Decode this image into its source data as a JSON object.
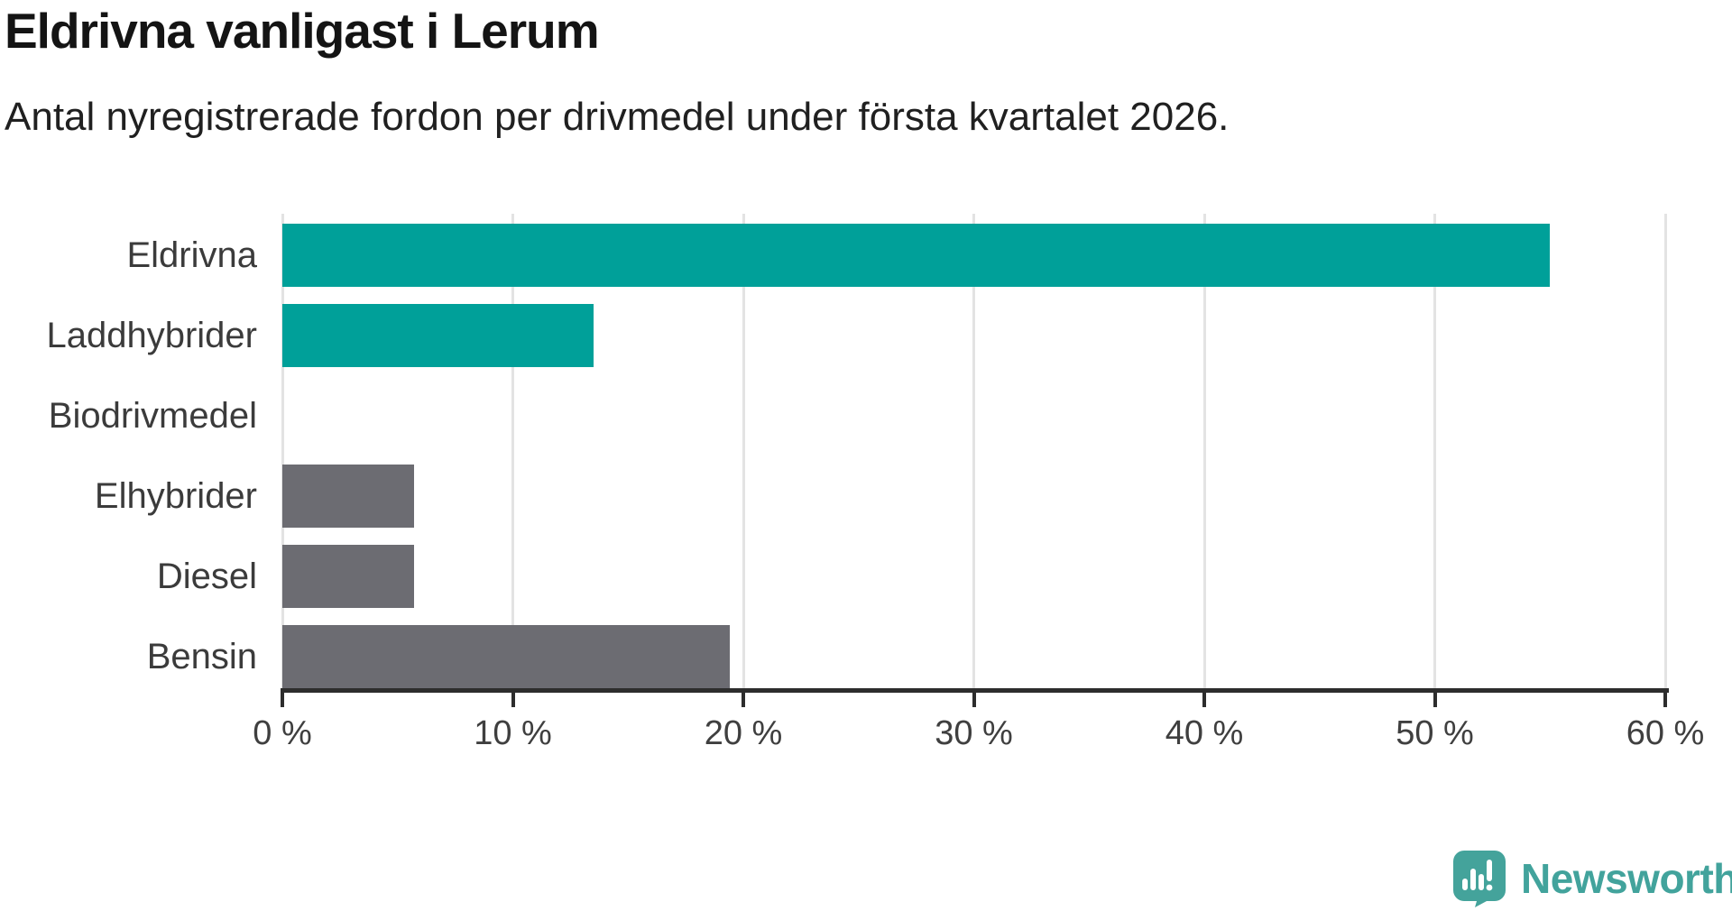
{
  "header": {
    "title": "Eldrivna vanligast i Lerum",
    "subtitle": "Antal nyregistrerade fordon per drivmedel under första kvartalet 2026."
  },
  "chart_data": {
    "type": "bar",
    "orientation": "horizontal",
    "title": "Eldrivna vanligast i Lerum",
    "subtitle": "Antal nyregistrerade fordon per drivmedel under första kvartalet 2026.",
    "categories": [
      "Eldrivna",
      "Laddhybrider",
      "Biodrivmedel",
      "Elhybrider",
      "Diesel",
      "Bensin"
    ],
    "values": [
      55,
      13.5,
      0,
      5.7,
      5.7,
      19.4
    ],
    "unit": "%",
    "xlim": [
      0,
      60
    ],
    "x_ticks": [
      0,
      10,
      20,
      30,
      40,
      50,
      60
    ],
    "x_tick_labels": [
      "0 %",
      "10 %",
      "20 %",
      "30 %",
      "40 %",
      "50 %",
      "60 %"
    ],
    "grid": "vertical-only",
    "legend": "none",
    "bar_colors": [
      "#00a099",
      "#00a099",
      "#00a099",
      "#6c6c72",
      "#6c6c72",
      "#6c6c72"
    ],
    "highlight_color": "#00a099",
    "default_color": "#6c6c72",
    "gridline_color": "#e3e3e3",
    "axis_color": "#2d2d2d"
  },
  "footer": {
    "brand": "Newsworthy",
    "brand_color": "#42a39c",
    "logo_icon": "speech-bubble-bar-chart-icon"
  }
}
